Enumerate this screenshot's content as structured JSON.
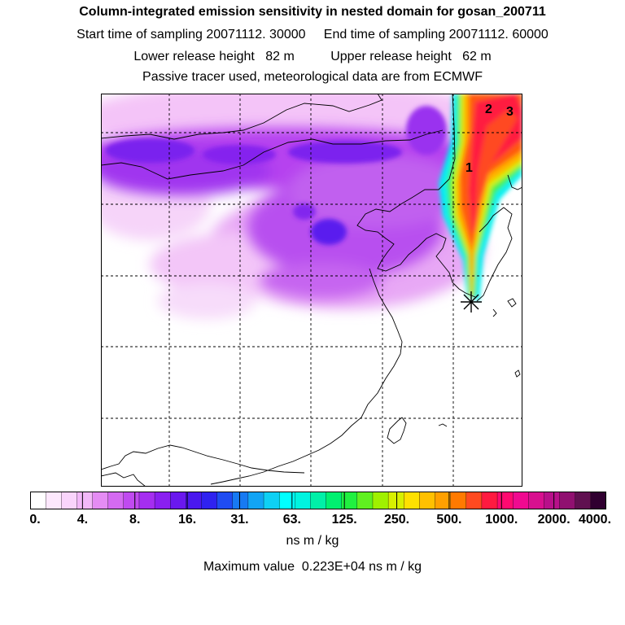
{
  "header": {
    "title": "Column-integrated emission sensitivity in nested domain for gosan_200711",
    "sampling": "Start time of sampling 20071112. 30000     End time of sampling 20071112. 60000",
    "release": "Lower release height   82 m          Upper release height   62 m",
    "tracer": "Passive tracer used, meteorological data are from ECMWF"
  },
  "map": {
    "labels": [
      "1",
      "2",
      "3"
    ],
    "release_marker": "asterisk"
  },
  "colorbar": {
    "ticks": [
      "0.",
      "4.",
      "8.",
      "16.",
      "31.",
      "63.",
      "125.",
      "250.",
      "500.",
      "1000.",
      "2000.",
      "4000."
    ],
    "colors": [
      "#ffffff",
      "#fde8fd",
      "#f9d4fb",
      "#f2b8f8",
      "#e58cf4",
      "#d46af1",
      "#c04af0",
      "#a52ef0",
      "#8a1ff0",
      "#6a18ee",
      "#4a18ee",
      "#2f22f0",
      "#1f4cf2",
      "#177af3",
      "#12a4f4",
      "#0fd0f4",
      "#00ffff",
      "#00f4e0",
      "#00f0a8",
      "#00f070",
      "#20f040",
      "#60f020",
      "#a0f000",
      "#d8f000",
      "#ffe000",
      "#ffc000",
      "#ffa000",
      "#ff7a00",
      "#ff4a20",
      "#ff1a40",
      "#ff0a70",
      "#f00a90",
      "#d8108f",
      "#b8108a",
      "#901070",
      "#601050",
      "#300030"
    ],
    "units": "ns m / kg"
  },
  "footer": {
    "max_value": "Maximum value  0.223E+04 ns m / kg"
  }
}
